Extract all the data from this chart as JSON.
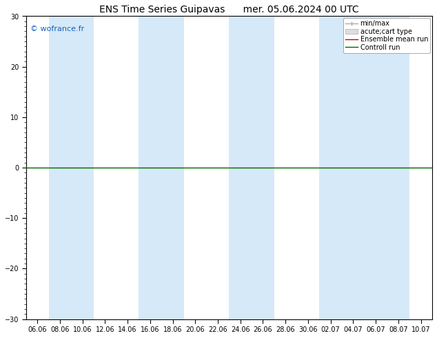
{
  "title": "ENS Time Series Guipavas",
  "title_right": "mer. 05.06.2024 00 UTC",
  "watermark": "© wofrance.fr",
  "ylim": [
    -30,
    30
  ],
  "yticks": [
    -30,
    -20,
    -10,
    0,
    10,
    20,
    30
  ],
  "bg_color": "#ffffff",
  "plot_bg_color": "#ffffff",
  "band_color": "#d6e9f8",
  "xtick_labels": [
    "06.06",
    "08.06",
    "10.06",
    "12.06",
    "14.06",
    "16.06",
    "18.06",
    "20.06",
    "22.06",
    "24.06",
    "26.06",
    "28.06",
    "30.06",
    "02.07",
    "04.07",
    "06.07",
    "08.07",
    "10.07"
  ],
  "legend_entries": [
    {
      "label": "min/max",
      "color": "#aaaaaa"
    },
    {
      "label": "acute;cart type",
      "color": "#cccccc"
    },
    {
      "label": "Ensemble mean run",
      "color": "#cc0000"
    },
    {
      "label": "Controll run",
      "color": "#006400"
    }
  ],
  "hline_y": 0,
  "hline_color": "#006400",
  "title_fontsize": 10,
  "tick_fontsize": 7,
  "legend_fontsize": 7,
  "watermark_fontsize": 8,
  "watermark_color": "#1a5fba",
  "band_xranges": [
    [
      1,
      2
    ],
    [
      5,
      6
    ],
    [
      9,
      10
    ],
    [
      13,
      14
    ],
    [
      15,
      16
    ]
  ],
  "spine_color": "#000000"
}
